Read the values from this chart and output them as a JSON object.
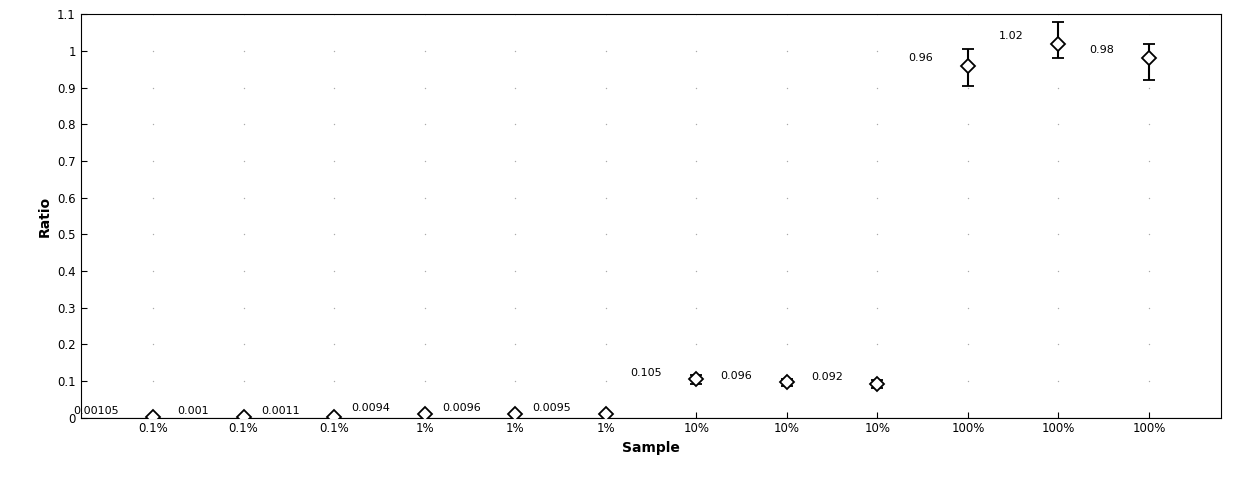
{
  "categories": [
    "0.1%",
    "0.1%",
    "0.1%",
    "1%",
    "1%",
    "1%",
    "10%",
    "10%",
    "10%",
    "100%",
    "100%",
    "100%"
  ],
  "x_positions": [
    1,
    2,
    3,
    4,
    5,
    6,
    7,
    8,
    9,
    10,
    11,
    12
  ],
  "y_values": [
    0.00105,
    0.001,
    0.0011,
    0.0094,
    0.0096,
    0.0095,
    0.105,
    0.096,
    0.092,
    0.96,
    1.02,
    0.98
  ],
  "y_err_low": [
    0.0002,
    0.0002,
    0.0002,
    0.0006,
    0.0006,
    0.0006,
    0.012,
    0.01,
    0.01,
    0.055,
    0.04,
    0.06
  ],
  "y_err_high": [
    0.0002,
    0.0002,
    0.0002,
    0.0006,
    0.0006,
    0.0006,
    0.012,
    0.01,
    0.01,
    0.045,
    0.06,
    0.04
  ],
  "labels": [
    "0.00105",
    "0.001",
    "0.0011",
    "0.0094",
    "0.0096",
    "0.0095",
    "0.105",
    "0.096",
    "0.092",
    "0.96",
    "1.02",
    "0.98"
  ],
  "label_offsets_x": [
    -0.38,
    -0.38,
    -0.38,
    -0.38,
    -0.38,
    -0.38,
    -0.38,
    -0.38,
    -0.38,
    -0.38,
    -0.38,
    -0.38
  ],
  "label_offsets_y": [
    0.004,
    0.004,
    0.004,
    0.004,
    0.004,
    0.004,
    0.004,
    0.004,
    0.004,
    0.008,
    0.008,
    0.008
  ],
  "ylim": [
    0,
    1.1
  ],
  "ylabel": "Ratio",
  "xlabel": "Sample",
  "yticks": [
    0,
    0.1,
    0.2,
    0.3,
    0.4,
    0.5,
    0.6,
    0.7,
    0.8,
    0.9,
    1.0,
    1.1
  ],
  "ytick_labels": [
    "0",
    "0.1",
    "0.2",
    "0.3",
    "0.4",
    "0.5",
    "0.6",
    "0.7",
    "0.8",
    "0.9",
    "1",
    "1.1"
  ],
  "grid_x_positions": [
    1,
    2,
    3,
    4,
    5,
    6,
    7,
    8,
    9,
    10,
    11,
    12
  ],
  "marker_color": "#000000",
  "marker_face": "#ffffff",
  "elinewidth": 1.5,
  "capsize": 4,
  "grid_color": "#aaaaaa",
  "background_color": "#ffffff",
  "tick_fontsize": 8.5,
  "label_fontsize": 8,
  "axis_label_fontsize": 10,
  "marker_size": 7
}
